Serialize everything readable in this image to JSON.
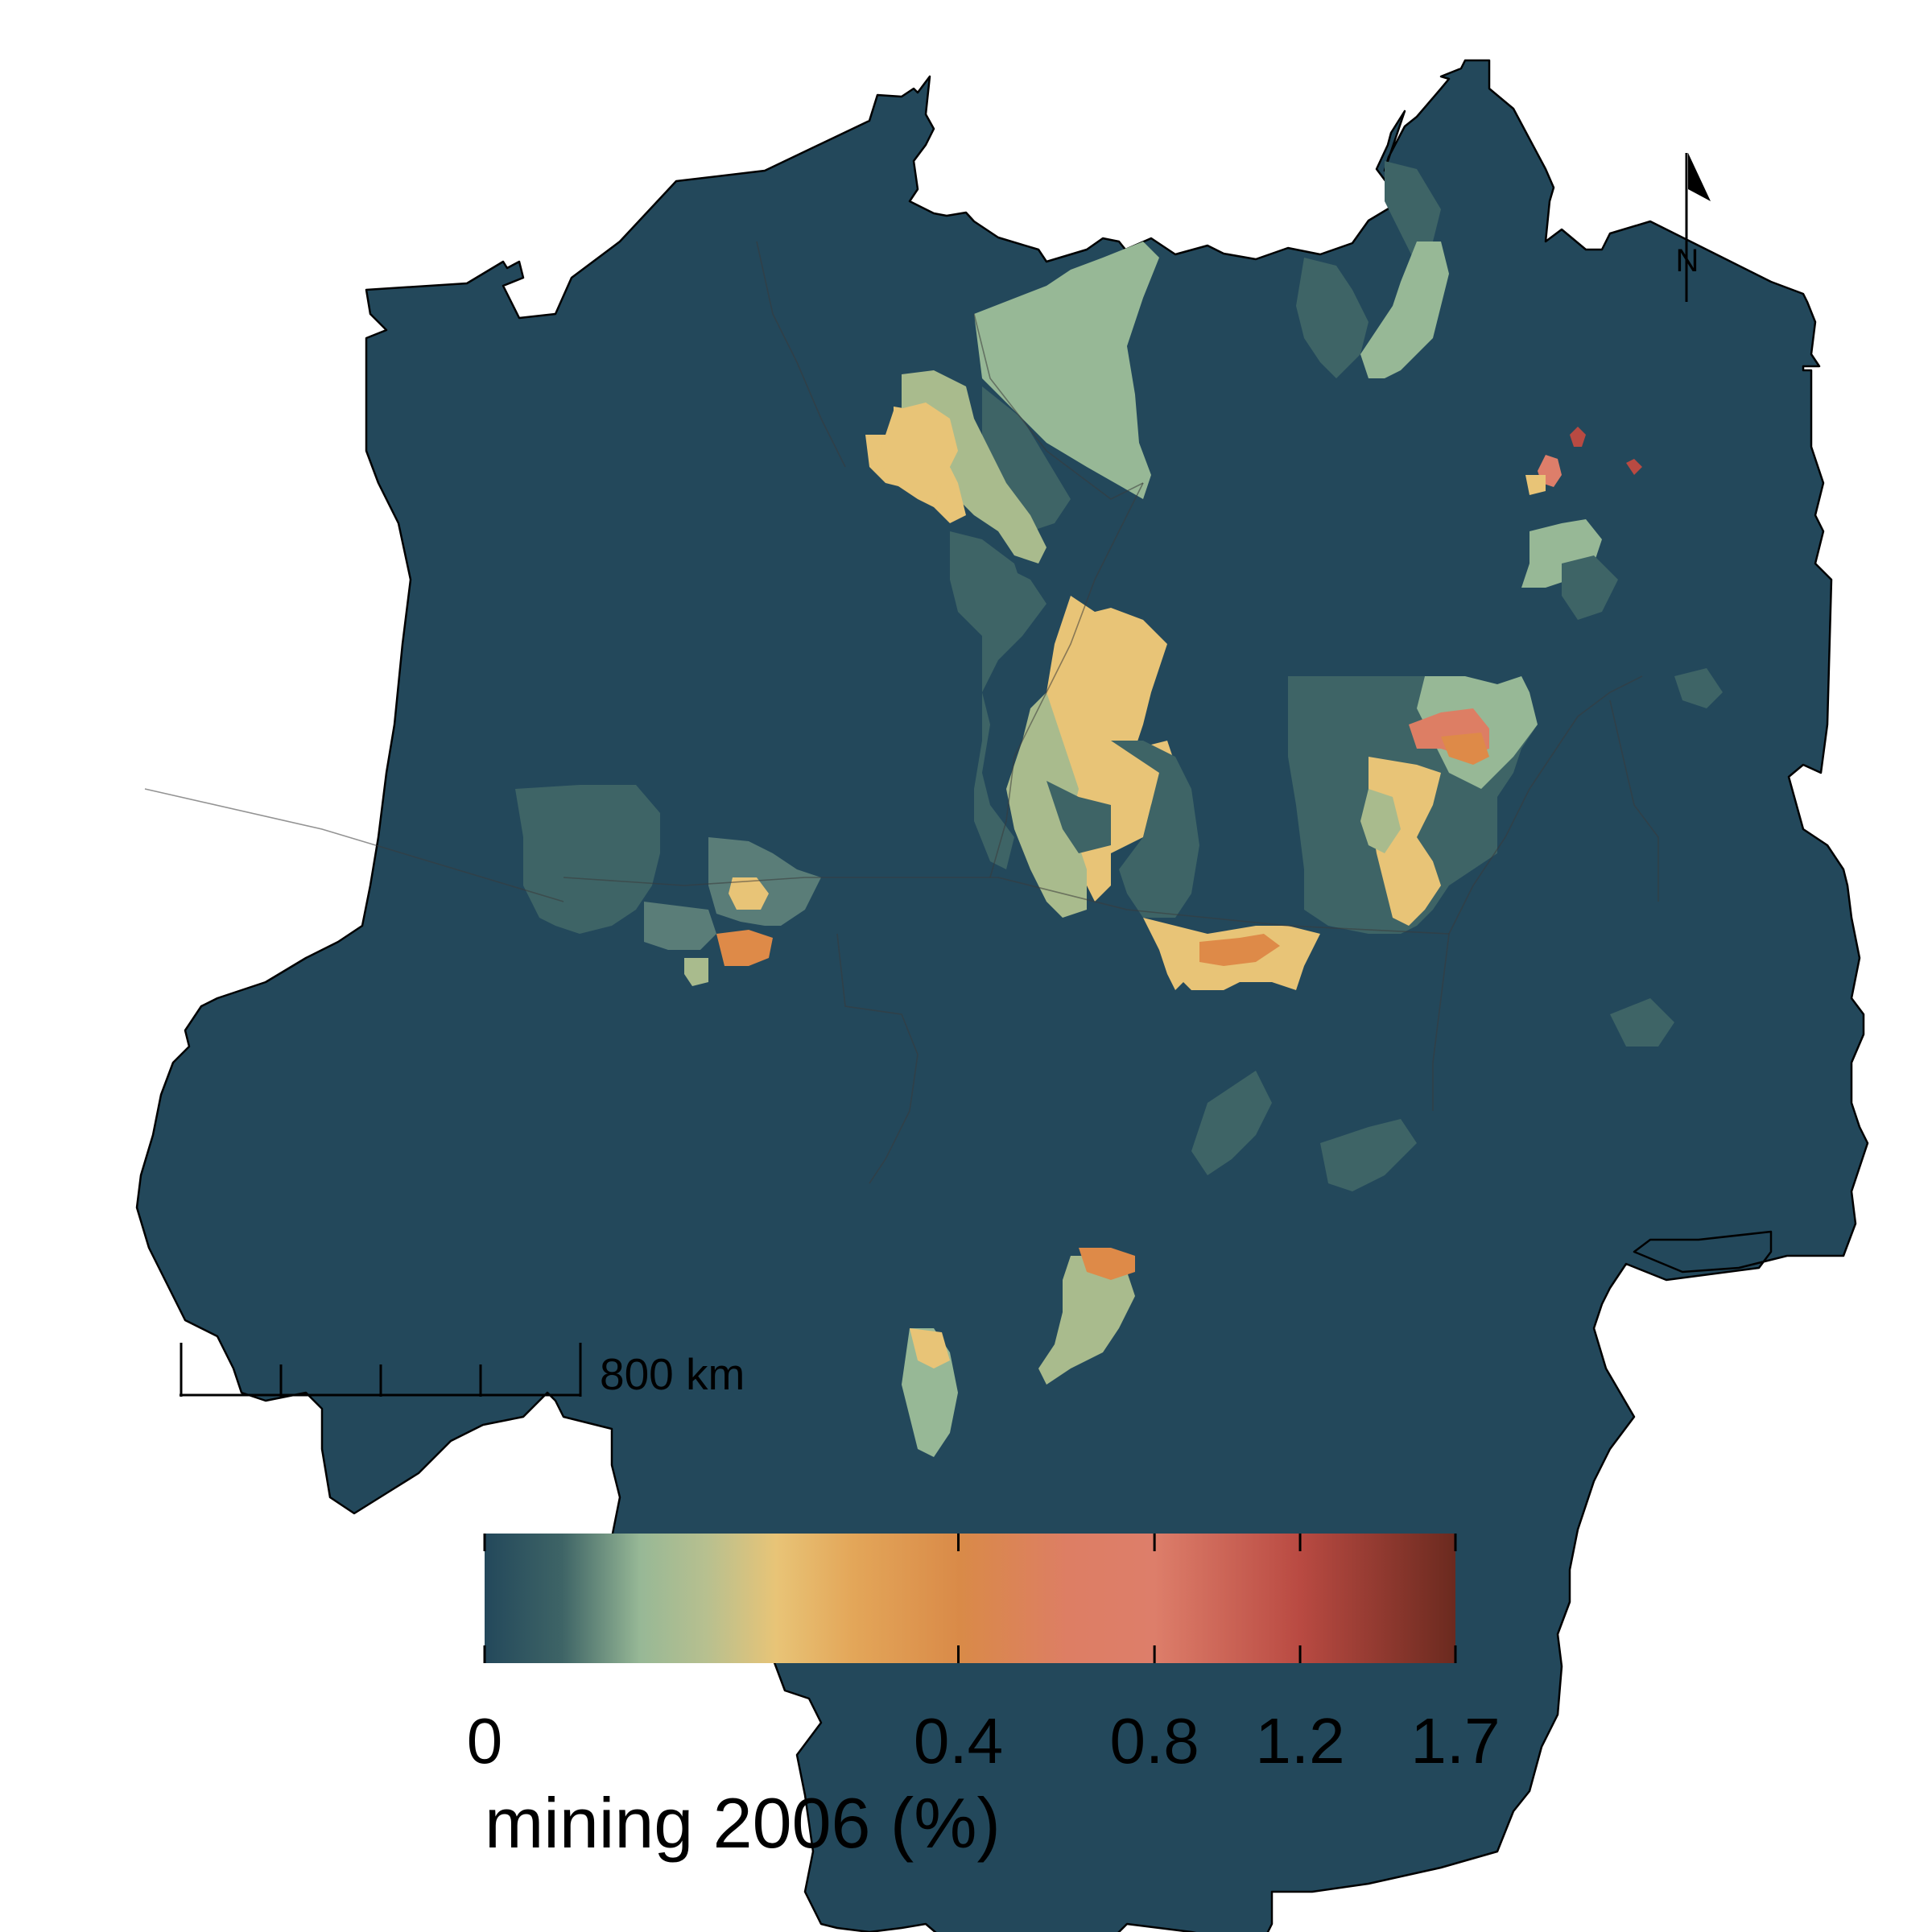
{
  "map": {
    "north_label": "N",
    "scale_bar_label": "800 km"
  },
  "legend": {
    "title": "mining 2006 (%)",
    "ticks": [
      "0",
      "0.4",
      "0.8",
      "1.2",
      "1.7"
    ],
    "tick_values": [
      0,
      0.4,
      0.8,
      1.2,
      1.7
    ],
    "range": [
      0,
      1.7
    ],
    "colors": {
      "low": "#23485b",
      "mid_low": "#97b896",
      "mid": "#e8c477",
      "mid_high": "#de8a48",
      "high_mid": "#dd7e6a",
      "high": "#b94a42",
      "max": "#6b2a1f"
    }
  },
  "colors": {
    "background": "#ffffff",
    "base_region": "#23485b",
    "outline": "#000000"
  }
}
